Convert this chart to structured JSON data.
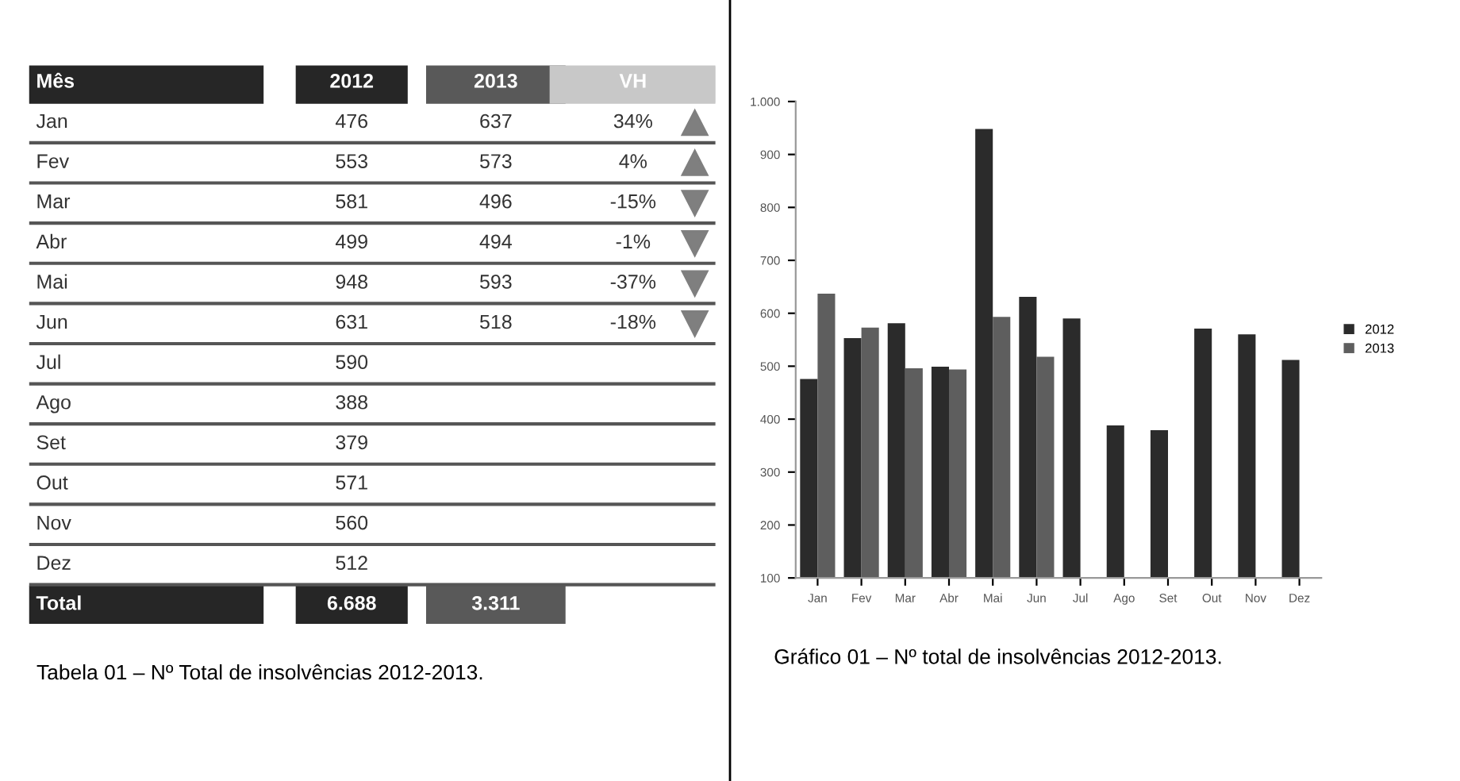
{
  "chart_data": [
    {
      "type": "other",
      "xlabel": "Mês",
      "categories": [
        "Jan",
        "Fev",
        "Mar",
        "Abr",
        "Mai",
        "Jun",
        "Jul",
        "Ago",
        "Set",
        "Out",
        "Nov",
        "Dez",
        "Total"
      ],
      "series": [
        {
          "name": "2012",
          "color": "#262626",
          "values": [
            476,
            553,
            581,
            499,
            948,
            631,
            590,
            388,
            379,
            571,
            560,
            512,
            6688
          ],
          "value_labels": [
            "476",
            "553",
            "581",
            "499",
            "948",
            "631",
            "590",
            "388",
            "379",
            "571",
            "560",
            "512",
            "6.688"
          ]
        },
        {
          "name": "2013",
          "color": "#595959",
          "values": [
            637,
            573,
            496,
            494,
            593,
            518,
            null,
            null,
            null,
            null,
            null,
            null,
            3311
          ],
          "value_labels": [
            "637",
            "573",
            "496",
            "494",
            "593",
            "518",
            null,
            null,
            null,
            null,
            null,
            null,
            "3.311"
          ]
        },
        {
          "name": "VH",
          "values": [
            34,
            4,
            -15,
            -1,
            -37,
            -18,
            null,
            null,
            null,
            null,
            null,
            null,
            null
          ],
          "value_labels": [
            "34%",
            "4%",
            "-15%",
            "-1%",
            "-37%",
            "-18%",
            null,
            null,
            null,
            null,
            null,
            null,
            null
          ]
        }
      ],
      "annotations": [
        "Tabela 01 – Nº Total de insolvências 2012-2013."
      ]
    },
    {
      "type": "bar",
      "categories": [
        "Jan",
        "Fev",
        "Mar",
        "Abr",
        "Mai",
        "Jun",
        "Jul",
        "Ago",
        "Set",
        "Out",
        "Nov",
        "Dez"
      ],
      "series": [
        {
          "name": "2012",
          "color": "#2b2b2b",
          "values": [
            476,
            553,
            581,
            499,
            948,
            631,
            590,
            388,
            379,
            571,
            560,
            512
          ]
        },
        {
          "name": "2013",
          "color": "#5e5e5e",
          "values": [
            637,
            573,
            496,
            494,
            593,
            518,
            null,
            null,
            null,
            null,
            null,
            null
          ]
        }
      ],
      "ylim": [
        100,
        1000
      ],
      "yticks": [
        100,
        200,
        300,
        400,
        500,
        600,
        700,
        800,
        900,
        {
          "value": 1000,
          "label": "1.000"
        }
      ],
      "grid": false,
      "legend": "right",
      "annotations": [
        "Gráfico 01 – Nº total de insolvências 2012-2013."
      ]
    }
  ]
}
